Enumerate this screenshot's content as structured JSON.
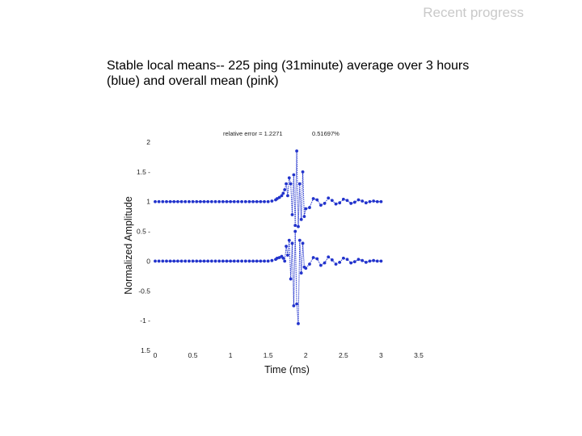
{
  "header": {
    "section": "Recent progress"
  },
  "slide": {
    "title": "Stable local means-- 225 ping (31minute) average over 3 hours (blue) and overall mean (pink)"
  },
  "chart_data": {
    "type": "line",
    "annotation": {
      "label": "relative error = 1.2271",
      "value": "0.51697%"
    },
    "xlabel": "Time (ms)",
    "ylabel": "Normalized Amplitude",
    "xlim": [
      0,
      3.5
    ],
    "ylim": [
      -1.5,
      2
    ],
    "x_ticks": [
      "0",
      "0.5",
      "1",
      "1.5",
      "2",
      "2.5",
      "3",
      "3.5"
    ],
    "y_ticks": [
      "2",
      "1.5 -",
      "1",
      "0.5 -",
      "0",
      "-0.5",
      "-1 -",
      "1.5"
    ],
    "grid": false,
    "line_color": "#2233cc",
    "series": [
      {
        "x": [
          0,
          0.05,
          0.1,
          0.15,
          0.2,
          0.25,
          0.3,
          0.35,
          0.4,
          0.45,
          0.5,
          0.55,
          0.6,
          0.65,
          0.7,
          0.75,
          0.8,
          0.85,
          0.9,
          0.95,
          1.0,
          1.05,
          1.1,
          1.15,
          1.2,
          1.25,
          1.3,
          1.35,
          1.4,
          1.45,
          1.5,
          1.55,
          1.6,
          1.62,
          1.65,
          1.68,
          1.7,
          1.72,
          1.74,
          1.76,
          1.78,
          1.8,
          1.82,
          1.84,
          1.86,
          1.88,
          1.9,
          1.92,
          1.94,
          1.96,
          1.98,
          2.0,
          2.05,
          2.1,
          2.15,
          2.2,
          2.25,
          2.3,
          2.35,
          2.4,
          2.45,
          2.5,
          2.55,
          2.6,
          2.65,
          2.7,
          2.75,
          2.8,
          2.85,
          2.9,
          2.95,
          3.0
        ],
        "y": [
          1,
          1,
          1,
          1,
          1,
          1,
          1,
          1,
          1,
          1,
          1,
          1,
          1,
          1,
          1,
          1,
          1,
          1,
          1,
          1,
          1,
          1,
          1,
          1,
          1,
          1,
          1,
          1,
          1,
          1,
          1,
          1.01,
          1.03,
          1.05,
          1.07,
          1.1,
          1.14,
          1.2,
          1.3,
          1.1,
          1.4,
          1.3,
          0.78,
          1.45,
          0.6,
          1.85,
          0.58,
          1.3,
          0.7,
          1.5,
          0.75,
          0.88,
          0.9,
          1.05,
          1.03,
          0.94,
          0.97,
          1.06,
          1.02,
          0.96,
          0.98,
          1.04,
          1.02,
          0.97,
          0.99,
          1.03,
          1.01,
          0.98,
          1,
          1.01,
          1,
          1
        ]
      },
      {
        "x": [
          0,
          0.05,
          0.1,
          0.15,
          0.2,
          0.25,
          0.3,
          0.35,
          0.4,
          0.45,
          0.5,
          0.55,
          0.6,
          0.65,
          0.7,
          0.75,
          0.8,
          0.85,
          0.9,
          0.95,
          1.0,
          1.05,
          1.1,
          1.15,
          1.2,
          1.25,
          1.3,
          1.35,
          1.4,
          1.45,
          1.5,
          1.55,
          1.6,
          1.62,
          1.65,
          1.68,
          1.7,
          1.72,
          1.74,
          1.76,
          1.78,
          1.8,
          1.82,
          1.84,
          1.86,
          1.88,
          1.9,
          1.92,
          1.94,
          1.96,
          1.98,
          2.0,
          2.05,
          2.1,
          2.15,
          2.2,
          2.25,
          2.3,
          2.35,
          2.4,
          2.45,
          2.5,
          2.55,
          2.6,
          2.65,
          2.7,
          2.75,
          2.8,
          2.85,
          2.9,
          2.95,
          3.0
        ],
        "y": [
          0,
          0,
          0,
          0,
          0,
          0,
          0,
          0,
          0,
          0,
          0,
          0,
          0,
          0,
          0,
          0,
          0,
          0,
          0,
          0,
          0,
          0,
          0,
          0,
          0,
          0,
          0,
          0,
          0,
          0,
          0,
          0.01,
          0.03,
          0.05,
          0.06,
          0.08,
          0.05,
          0,
          0.25,
          0.1,
          0.35,
          -0.3,
          0.3,
          -0.75,
          0.5,
          -0.72,
          -1.05,
          0.35,
          -0.2,
          0.3,
          -0.1,
          -0.12,
          -0.05,
          0.06,
          0.04,
          -0.07,
          -0.03,
          0.07,
          0.02,
          -0.05,
          -0.02,
          0.05,
          0.03,
          -0.03,
          -0.01,
          0.03,
          0.01,
          -0.02,
          0,
          0.01,
          0,
          0
        ]
      }
    ]
  }
}
